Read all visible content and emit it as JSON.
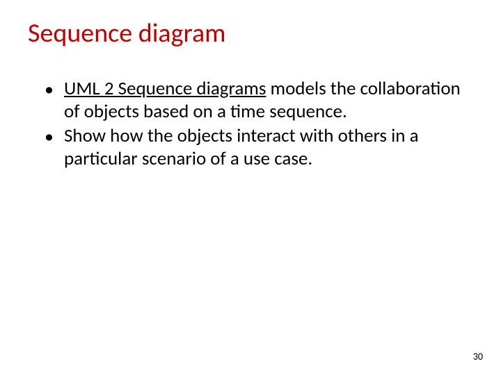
{
  "title": {
    "text": "Sequence diagram",
    "color": "#c00000",
    "fontsize": 38,
    "fontweight": 400
  },
  "body": {
    "text_color": "#000000",
    "fontsize": 27,
    "bullets": [
      {
        "underline_prefix": "UML 2 Sequence diagrams",
        "rest": " models the collaboration of objects based on a time sequence."
      },
      {
        "underline_prefix": "",
        "rest": "Show how the objects interact with others in a particular scenario of a use case."
      }
    ]
  },
  "page_number": "30",
  "background_color": "#ffffff"
}
